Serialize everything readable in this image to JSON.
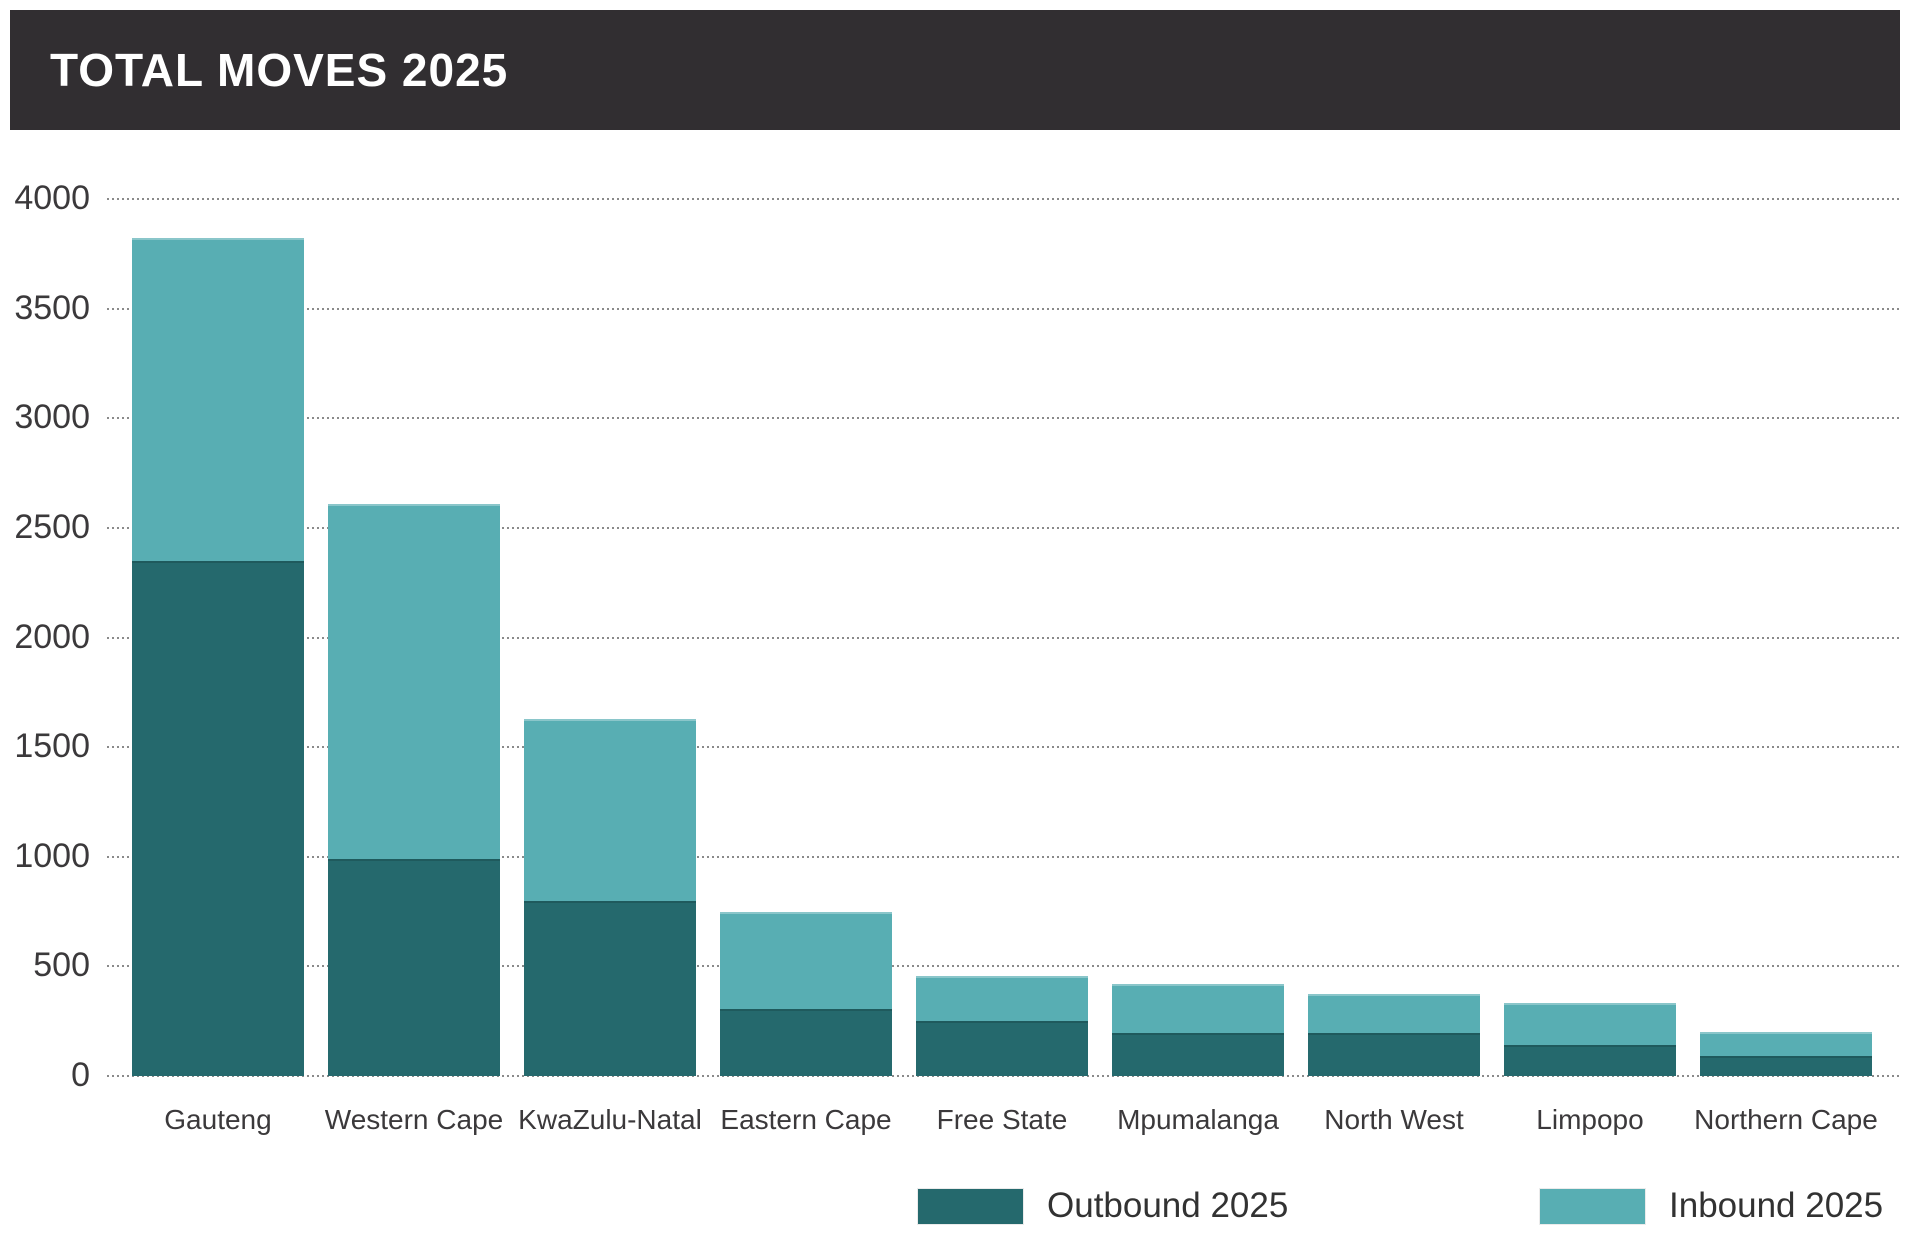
{
  "header": {
    "title": "TOTAL MOVES 2025"
  },
  "colors": {
    "header_bg": "#312E31",
    "title_text": "#FFFFFF",
    "outbound": "#25696D",
    "inbound": "#58AEB3",
    "gridline": "#8A8A8A",
    "axis_text": "#3B393B"
  },
  "chart_data": {
    "type": "bar",
    "stacked": true,
    "title": "TOTAL MOVES 2025",
    "categories": [
      "Gauteng",
      "Western Cape",
      "KwaZulu-Natal",
      "Eastern Cape",
      "Free State",
      "Mpumalanga",
      "North West",
      "Limpopo",
      "Northern Cape"
    ],
    "series": [
      {
        "name": "Outbound 2025",
        "color": "#25696D",
        "values": [
          2350,
          990,
          800,
          305,
          250,
          195,
          195,
          140,
          90
        ]
      },
      {
        "name": "Inbound 2025",
        "color": "#58AEB3",
        "values": [
          1470,
          1620,
          830,
          445,
          205,
          225,
          180,
          195,
          110
        ]
      }
    ],
    "stack_totals": [
      3820,
      2610,
      1630,
      750,
      455,
      420,
      375,
      335,
      200
    ],
    "ylim": [
      0,
      4000
    ],
    "yticks": [
      0,
      500,
      1000,
      1500,
      2000,
      2500,
      3000,
      3500,
      4000
    ],
    "grid": "horizontal-dotted",
    "legend_position": "bottom-right"
  }
}
